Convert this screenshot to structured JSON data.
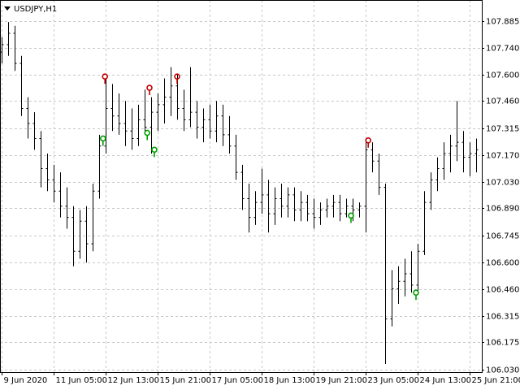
{
  "chart_data": {
    "type": "ohlc",
    "title": "USDJPY,H1",
    "color": "#000000",
    "grid": true,
    "bars": [
      [
        107.72,
        107.8,
        107.66,
        107.76
      ],
      [
        107.76,
        107.88,
        107.7,
        107.82
      ],
      [
        107.82,
        107.86,
        107.62,
        107.66
      ],
      [
        107.66,
        107.7,
        107.38,
        107.42
      ],
      [
        107.42,
        107.48,
        107.26,
        107.34
      ],
      [
        107.34,
        107.4,
        107.2,
        107.26
      ],
      [
        107.26,
        107.3,
        107.0,
        107.1
      ],
      [
        107.1,
        107.18,
        106.98,
        107.04
      ],
      [
        107.04,
        107.12,
        106.92,
        106.98
      ],
      [
        106.98,
        107.08,
        106.84,
        106.9
      ],
      [
        106.9,
        107.0,
        106.78,
        106.84
      ],
      [
        106.84,
        106.9,
        106.58,
        106.66
      ],
      [
        106.66,
        106.88,
        106.62,
        106.82
      ],
      [
        106.82,
        106.9,
        106.6,
        106.7
      ],
      [
        106.7,
        107.02,
        106.66,
        106.98
      ],
      [
        106.98,
        107.28,
        106.94,
        107.22
      ],
      [
        107.22,
        107.58,
        107.18,
        107.42
      ],
      [
        107.42,
        107.55,
        107.3,
        107.38
      ],
      [
        107.38,
        107.5,
        107.28,
        107.34
      ],
      [
        107.34,
        107.46,
        107.22,
        107.3
      ],
      [
        107.3,
        107.42,
        107.2,
        107.26
      ],
      [
        107.26,
        107.44,
        107.22,
        107.36
      ],
      [
        107.36,
        107.52,
        107.28,
        107.32
      ],
      [
        107.32,
        107.48,
        107.18,
        107.4
      ],
      [
        107.4,
        107.5,
        107.3,
        107.44
      ],
      [
        107.44,
        107.58,
        107.34,
        107.48
      ],
      [
        107.48,
        107.64,
        107.38,
        107.54
      ],
      [
        107.54,
        107.6,
        107.36,
        107.42
      ],
      [
        107.42,
        107.52,
        107.3,
        107.36
      ],
      [
        107.36,
        107.64,
        107.32,
        107.4
      ],
      [
        107.4,
        107.46,
        107.26,
        107.32
      ],
      [
        107.32,
        107.42,
        107.24,
        107.36
      ],
      [
        107.36,
        107.44,
        107.26,
        107.3
      ],
      [
        107.3,
        107.46,
        107.24,
        107.38
      ],
      [
        107.38,
        107.44,
        107.22,
        107.28
      ],
      [
        107.28,
        107.38,
        107.18,
        107.22
      ],
      [
        107.22,
        107.28,
        107.04,
        107.08
      ],
      [
        107.08,
        107.12,
        106.88,
        106.94
      ],
      [
        106.94,
        107.02,
        106.76,
        106.84
      ],
      [
        106.84,
        106.98,
        106.8,
        106.92
      ],
      [
        106.92,
        107.1,
        106.86,
        106.96
      ],
      [
        106.96,
        107.04,
        106.76,
        106.86
      ],
      [
        106.86,
        107.0,
        106.8,
        106.94
      ],
      [
        106.94,
        107.02,
        106.84,
        106.9
      ],
      [
        106.9,
        107.0,
        106.84,
        106.96
      ],
      [
        106.96,
        107.0,
        106.82,
        106.88
      ],
      [
        106.88,
        106.98,
        106.82,
        106.92
      ],
      [
        106.92,
        106.96,
        106.82,
        106.86
      ],
      [
        106.86,
        106.94,
        106.78,
        106.84
      ],
      [
        106.84,
        106.92,
        106.8,
        106.88
      ],
      [
        106.88,
        106.94,
        106.84,
        106.9
      ],
      [
        106.9,
        106.96,
        106.84,
        106.92
      ],
      [
        106.92,
        106.96,
        106.82,
        106.86
      ],
      [
        106.86,
        106.94,
        106.84,
        106.9
      ],
      [
        106.9,
        106.94,
        106.82,
        106.88
      ],
      [
        106.88,
        106.92,
        106.84,
        106.9
      ],
      [
        106.9,
        107.26,
        106.76,
        107.2
      ],
      [
        107.2,
        107.24,
        107.08,
        107.14
      ],
      [
        107.14,
        107.18,
        106.96,
        107.0
      ],
      [
        107.0,
        107.02,
        106.06,
        106.3
      ],
      [
        106.3,
        106.56,
        106.26,
        106.46
      ],
      [
        106.46,
        106.58,
        106.38,
        106.5
      ],
      [
        106.5,
        106.62,
        106.42,
        106.54
      ],
      [
        106.54,
        106.66,
        106.44,
        106.48
      ],
      [
        106.48,
        106.7,
        106.44,
        106.66
      ],
      [
        106.66,
        106.98,
        106.64,
        106.92
      ],
      [
        106.92,
        107.08,
        106.88,
        107.04
      ],
      [
        107.04,
        107.16,
        106.98,
        107.1
      ],
      [
        107.1,
        107.24,
        107.04,
        107.18
      ],
      [
        107.18,
        107.28,
        107.08,
        107.22
      ],
      [
        107.22,
        107.46,
        107.14,
        107.24
      ],
      [
        107.24,
        107.3,
        107.08,
        107.16
      ],
      [
        107.16,
        107.24,
        107.06,
        107.18
      ],
      [
        107.18,
        107.26,
        107.08,
        107.2
      ]
    ],
    "markers": [
      {
        "color": "#c00000",
        "x": [
          15.9,
          22.75,
          27,
          56.4
        ],
        "values": [
          107.59,
          107.53,
          107.59,
          107.25
        ]
      },
      {
        "color": "#00a000",
        "x": [
          15.6,
          22.4,
          23.5,
          53.75,
          63.75
        ],
        "values": [
          107.26,
          107.29,
          107.2,
          106.85,
          106.44
        ]
      }
    ],
    "xlim": [
      -0.25,
      73.875
    ],
    "xticks": [
      {
        "value": 0,
        "label": "9 Jun 2020"
      },
      {
        "value": 8,
        "label": "11 Jun 05:00"
      },
      {
        "value": 16,
        "label": "12 Jun 13:00"
      },
      {
        "value": 24,
        "label": "15 Jun 21:00"
      },
      {
        "value": 32,
        "label": "17 Jun 05:00"
      },
      {
        "value": 40,
        "label": "18 Jun 13:00"
      },
      {
        "value": 48,
        "label": "19 Jun 21:00"
      },
      {
        "value": 56,
        "label": "23 Jun 05:00"
      },
      {
        "value": 64,
        "label": "24 Jun 13:00"
      },
      {
        "value": 72,
        "label": "25 Jun 21:00"
      }
    ],
    "ylim": [
      106.017,
      107.997
    ],
    "yticks": [
      107.885,
      {
        "value": 107.74,
        "label": "107.740"
      },
      {
        "value": 107.6,
        "label": "107.600"
      },
      {
        "value": 107.46,
        "label": "107.460"
      },
      107.315,
      {
        "value": 107.17,
        "label": "107.170"
      },
      {
        "value": 107.03,
        "label": "107.030"
      },
      {
        "value": 106.89,
        "label": "106.890"
      },
      106.745,
      {
        "value": 106.6,
        "label": "106.600"
      },
      {
        "value": 106.46,
        "label": "106.460"
      },
      106.315,
      106.175,
      {
        "value": 106.03,
        "label": "106.030"
      }
    ]
  }
}
